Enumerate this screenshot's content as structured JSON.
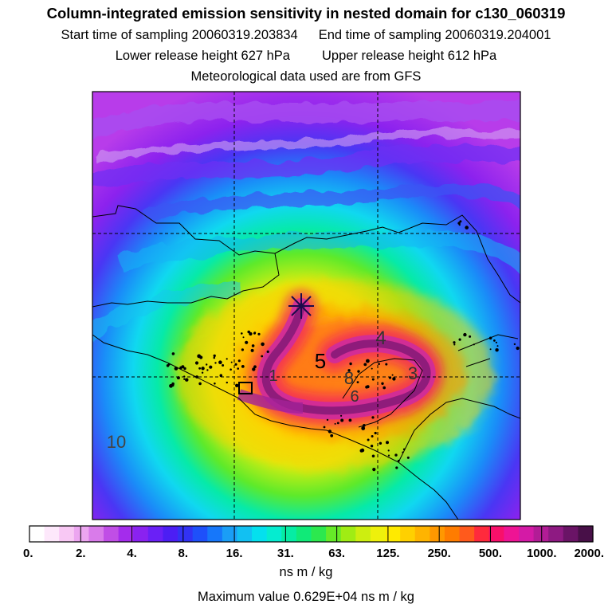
{
  "header": {
    "title": "Column-integrated emission sensitivity in nested domain for c130_060319",
    "start_time": "Start time of sampling 20060319.203834",
    "end_time": "End time of sampling 20060319.204001",
    "lower_release": "Lower release height  627 hPa",
    "upper_release": "Upper release height  612 hPa",
    "met_data": "Meteorological data used are from GFS"
  },
  "chart_data": {
    "type": "heatmap",
    "title": "Column-integrated emission sensitivity in nested domain for c130_060319",
    "colorbar": {
      "tick_labels": [
        "0.",
        "2.",
        "4.",
        "8.",
        "16.",
        "31.",
        "63.",
        "125.",
        "250.",
        "500.",
        "1000.",
        "2000."
      ],
      "tick_values": [
        0,
        2,
        4,
        8,
        16,
        31,
        63,
        125,
        250,
        500,
        1000,
        2000
      ],
      "unit_label": "ns m / kg",
      "colors": [
        "#ffffff",
        "#fde8fb",
        "#f8c8f4",
        "#eca6f0",
        "#d97bea",
        "#c04ee6",
        "#a42cec",
        "#8a22f0",
        "#6a20f6",
        "#4c1ef4",
        "#3232f4",
        "#1e50fa",
        "#1677fa",
        "#1a9ef6",
        "#12c0f2",
        "#04e0ee",
        "#05ecd0",
        "#06eca4",
        "#10ea78",
        "#2ce84e",
        "#66ea28",
        "#a0ec14",
        "#cdee10",
        "#eef00c",
        "#ffea00",
        "#ffd000",
        "#ffb400",
        "#ff9800",
        "#ff7c00",
        "#ff5a1c",
        "#ff2a3c",
        "#f8106a",
        "#ee1494",
        "#d41aa6",
        "#b21c96",
        "#8e1a82",
        "#6a1466",
        "#481048"
      ]
    },
    "field_labels": [
      {
        "text": "5",
        "value": 5
      },
      {
        "text": "4",
        "value": 4
      },
      {
        "text": "8",
        "value": 8
      },
      {
        "text": "6",
        "value": 6
      },
      {
        "text": "3",
        "value": 3
      },
      {
        "text": "1",
        "value": 1
      },
      {
        "text": "10",
        "value": 10
      }
    ],
    "maximum_value": "Maximum value  0.629E+04 ns m / kg",
    "release_marker": "asterisk",
    "gridlines": "dashed"
  }
}
